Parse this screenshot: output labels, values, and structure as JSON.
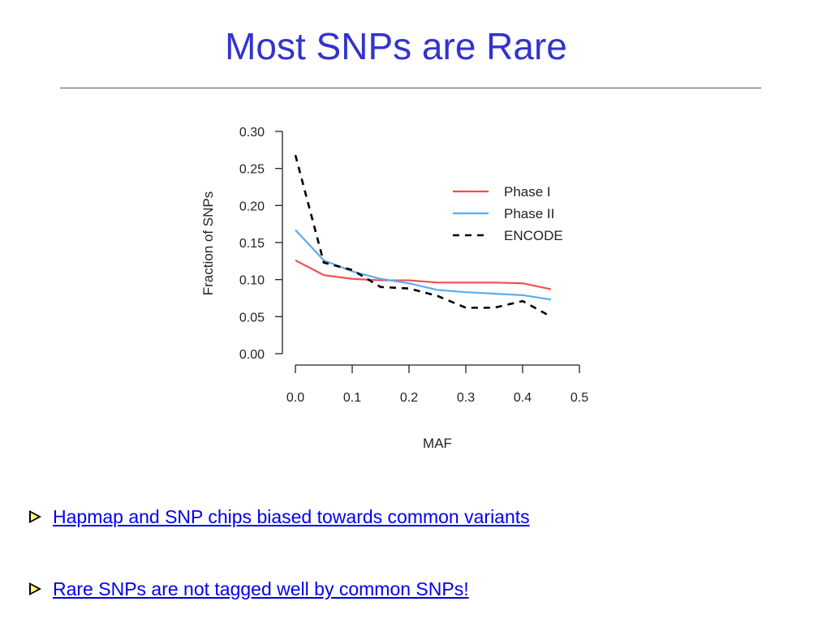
{
  "slide": {
    "title": "Most SNPs are Rare",
    "bullets": [
      "Hapmap and SNP chips biased towards common variants",
      "Rare SNPs are not tagged well by common SNPs!"
    ]
  },
  "chart_data": {
    "type": "line",
    "xlabel": "MAF",
    "ylabel": "Fraction of SNPs",
    "xlim": [
      0.0,
      0.5
    ],
    "ylim": [
      0.0,
      0.3
    ],
    "xticks": [
      "0.0",
      "0.1",
      "0.2",
      "0.3",
      "0.4",
      "0.5"
    ],
    "yticks": [
      "0.00",
      "0.05",
      "0.10",
      "0.15",
      "0.20",
      "0.25",
      "0.30"
    ],
    "legend_position": "top-right",
    "x": [
      0.0,
      0.05,
      0.1,
      0.15,
      0.2,
      0.25,
      0.3,
      0.35,
      0.4,
      0.45
    ],
    "series": [
      {
        "name": "Phase I",
        "color": "#f05050",
        "style": "solid",
        "values": [
          0.126,
          0.106,
          0.101,
          0.099,
          0.099,
          0.096,
          0.096,
          0.096,
          0.095,
          0.087
        ]
      },
      {
        "name": "Phase II",
        "color": "#5aacf5",
        "style": "solid",
        "values": [
          0.167,
          0.126,
          0.111,
          0.101,
          0.095,
          0.086,
          0.083,
          0.081,
          0.079,
          0.073
        ]
      },
      {
        "name": "ENCODE",
        "color": "#000000",
        "style": "dashed",
        "values": [
          0.268,
          0.123,
          0.113,
          0.09,
          0.088,
          0.078,
          0.062,
          0.062,
          0.071,
          0.05
        ]
      }
    ]
  }
}
